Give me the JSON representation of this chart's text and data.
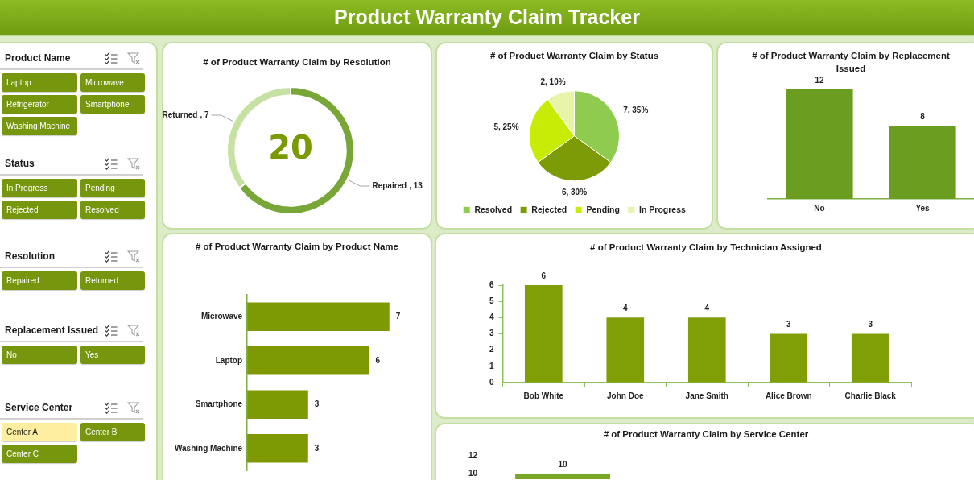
{
  "chart_data": [
    {
      "type": "other",
      "title": "Product Warranty Claim Tracker"
    },
    {
      "type": "other",
      "title": "Product Name",
      "annotations": [
        "Laptop",
        "Microwave",
        "Refrigerator",
        "Smartphone",
        "Washing Machine"
      ],
      "colors": [
        "#76960e",
        "#76960e",
        "#76960e",
        "#76960e",
        "#76960e"
      ]
    },
    {
      "type": "other",
      "title": "Status",
      "annotations": [
        "In Progress",
        "Pending",
        "Rejected",
        "Resolved"
      ],
      "colors": [
        "#76960e",
        "#76960e",
        "#76960e",
        "#76960e"
      ]
    },
    {
      "type": "other",
      "title": "Resolution",
      "annotations": [
        "Repaired",
        "Returned"
      ],
      "colors": [
        "#76960e",
        "#76960e"
      ]
    },
    {
      "type": "other",
      "title": "Replacement Issued",
      "annotations": [
        "No",
        "Yes"
      ],
      "colors": [
        "#76960e",
        "#76960e"
      ]
    },
    {
      "type": "other",
      "title": "Service Center",
      "annotations": [
        "Center A",
        "Center B",
        "Center C"
      ],
      "colors": [
        "#fdeea0",
        "#76960e",
        "#76960e"
      ]
    },
    {
      "type": "donut",
      "title": "# of Product Warranty Claim by Resolution",
      "categories": [
        "Repaired",
        "Returned"
      ],
      "values": [
        13,
        7
      ],
      "colors": [
        "#78a737",
        "#c6e2a2"
      ],
      "value_labels": [
        ", 13",
        ", 7"
      ],
      "annotations": [
        "20"
      ]
    },
    {
      "type": "pie",
      "title": "# of Product Warranty Claim by Status",
      "categories": [
        "Resolved",
        "Rejected",
        "Pending",
        "In Progress"
      ],
      "values": [
        7,
        6,
        5,
        2
      ],
      "colors": [
        "#8fcb4f",
        "#7d9b06",
        "#c8ec06",
        "#e8f5a9"
      ],
      "value_labels": [
        "7, 35%",
        "6, 30%",
        "5, 25%",
        "2, 10%"
      ],
      "legend": "bottom"
    },
    {
      "type": "bar",
      "title": "# of Product Warranty Claim by Replacement Issued",
      "categories": [
        "No",
        "Yes"
      ],
      "values": [
        12,
        8
      ],
      "color": "#6b9e20",
      "data_labels": true,
      "tick_labels": "x"
    },
    {
      "type": "bar",
      "orientation": "horizontal",
      "title": "# of Product Warranty Claim by Product Name",
      "categories": [
        "Microwave",
        "Laptop",
        "Smartphone",
        "Washing Machine"
      ],
      "values": [
        7,
        6,
        3,
        3
      ],
      "color": "#7d9a05",
      "data_labels": true,
      "tick_labels": "y"
    },
    {
      "type": "bar",
      "title": "# of Product Warranty Claim by Technician Assigned",
      "categories": [
        "Bob White",
        "John Doe",
        "Jane Smith",
        "Alice Brown",
        "Charlie Black"
      ],
      "values": [
        6,
        4,
        4,
        3,
        3
      ],
      "color": "#809f07",
      "ylim": [
        0,
        6
      ],
      "yticks": [
        0,
        1,
        2,
        3,
        4,
        5,
        6
      ],
      "data_labels": true
    },
    {
      "type": "bar",
      "title": "# of Product Warranty Claim by Service Center",
      "categories": [
        null
      ],
      "values": [
        10
      ],
      "color": "#79a625",
      "ylim": [
        9.4,
        12
      ],
      "yticks": [
        10,
        12
      ],
      "data_labels": true,
      "tick_labels": "y"
    }
  ]
}
